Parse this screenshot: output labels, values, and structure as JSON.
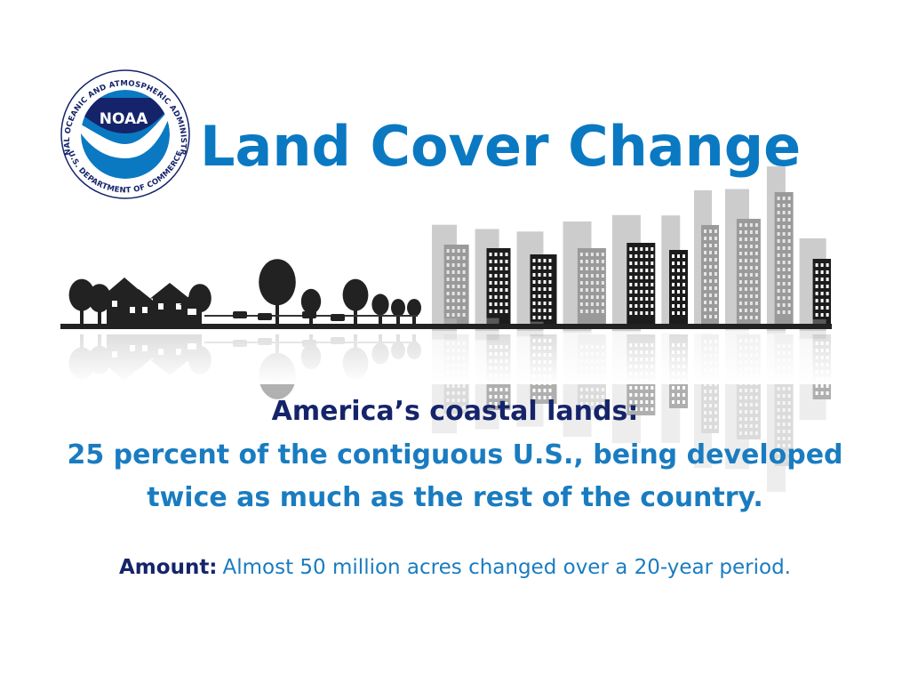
{
  "logo": {
    "acronym": "NOAA",
    "ring_top": "NATIONAL OCEANIC AND ATMOSPHERIC ADMINISTRATION",
    "ring_bottom": "U.S. DEPARTMENT OF COMMERCE"
  },
  "header": {
    "title": "Land Cover Change"
  },
  "content": {
    "heading": "America’s coastal lands:",
    "lines": [
      "25 percent of the contiguous U.S., being developed",
      "twice as much as the rest of the country."
    ],
    "amount_label": "Amount:",
    "amount_text": "Almost 50 million acres changed over a 20-year period."
  }
}
